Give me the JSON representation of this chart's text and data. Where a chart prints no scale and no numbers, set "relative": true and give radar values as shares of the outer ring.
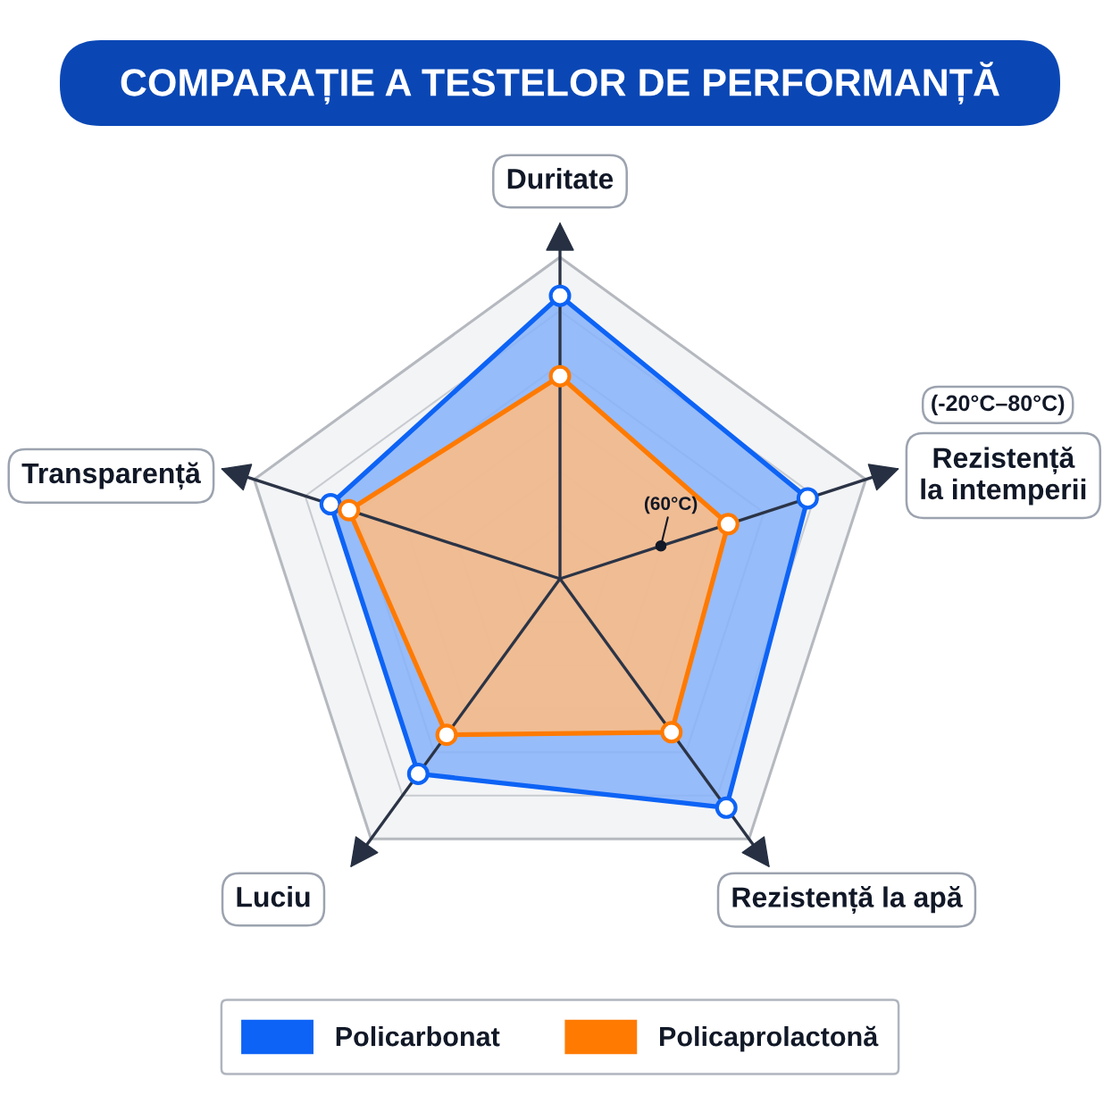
{
  "chart_data": {
    "type": "radar",
    "title": "COMPARAȚIE A TESTELOR DE PERFORMANȚĂ",
    "categories": [
      "Duritate",
      "Rezistență la intemperii",
      "Rezistență la apă",
      "Luciu",
      "Transparență"
    ],
    "relative": true,
    "series": [
      {
        "name": "Policarbonat",
        "color": "#0d63f5",
        "values": [
          0.88,
          0.81,
          0.88,
          0.75,
          0.75
        ]
      },
      {
        "name": "Policaprolactonă",
        "color": "#ff7a00",
        "values": [
          0.63,
          0.55,
          0.59,
          0.6,
          0.69
        ]
      }
    ],
    "annotations": [
      {
        "text": "(-20°C–80°C)",
        "x": "Rezistență la intemperii"
      },
      {
        "text": "(60°C)",
        "x": "Rezistență la intemperii"
      }
    ],
    "grid": true,
    "legend": "bottom",
    "marker": "circle"
  }
}
